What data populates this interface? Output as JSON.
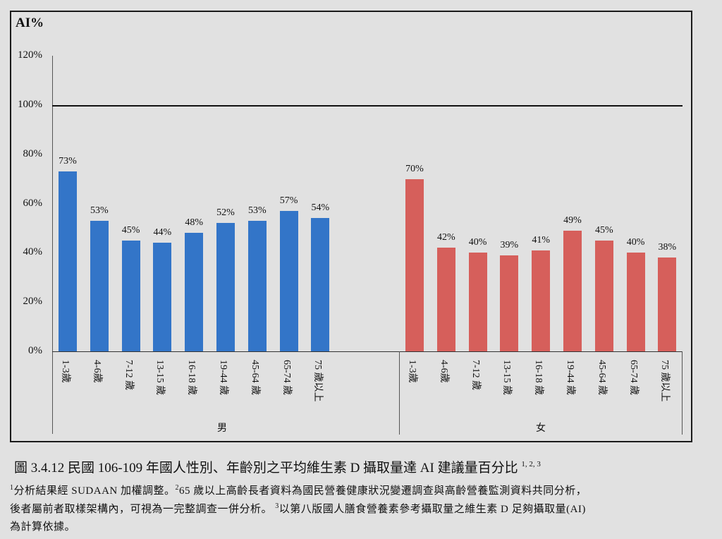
{
  "chart_data": {
    "type": "bar",
    "title": "圖 3.4.12 民國 106-109 年國人性別、年齡別之平均維生素 D 攝取量達 AI 建議量百分比",
    "title_superscript": "1, 2, 3",
    "ylabel": "AI%",
    "xlabel": "",
    "ylim": [
      0,
      120
    ],
    "yticks": [
      "0%",
      "20%",
      "40%",
      "60%",
      "80%",
      "100%",
      "120%"
    ],
    "reference_line": {
      "value": 100,
      "label": "100%"
    },
    "grid": false,
    "legend": null,
    "categories": [
      "1-3歲",
      "4-6歲",
      "7-12 歲",
      "13-15 歲",
      "16-18 歲",
      "19-44 歲",
      "45-64 歲",
      "65-74 歲",
      "75 歲以上"
    ],
    "series": [
      {
        "name": "男",
        "color": "#3375c8",
        "values": [
          73,
          53,
          45,
          44,
          48,
          52,
          53,
          57,
          54
        ],
        "labels": [
          "73%",
          "53%",
          "45%",
          "44%",
          "48%",
          "52%",
          "53%",
          "57%",
          "54%"
        ]
      },
      {
        "name": "女",
        "color": "#d65f5b",
        "values": [
          70,
          42,
          40,
          39,
          41,
          49,
          45,
          40,
          38
        ],
        "labels": [
          "70%",
          "42%",
          "40%",
          "39%",
          "41%",
          "49%",
          "45%",
          "40%",
          "38%"
        ]
      }
    ]
  },
  "caption": {
    "title": "圖 3.4.12 民國 106-109 年國人性別、年齡別之平均維生素 D 攝取量達 AI 建議量百分比",
    "title_sup": "1, 2, 3"
  },
  "notes": {
    "line1_sup1": "1",
    "line1_a": "分析結果經 SUDAAN 加權調整。",
    "line1_sup2": "2",
    "line1_b": "65 歲以上高齡長者資料為國民營養健康狀況變遷調查與高齡營養監測資料共同分析，",
    "line2_a": "後者屬前者取樣架構內，可視為一完整調查一併分析。 ",
    "line2_sup3": "3",
    "line2_b": "以第八版國人膳食營養素參考攝取量之維生素 D 足夠攝取量(AI)",
    "line3": "為計算依據。"
  }
}
